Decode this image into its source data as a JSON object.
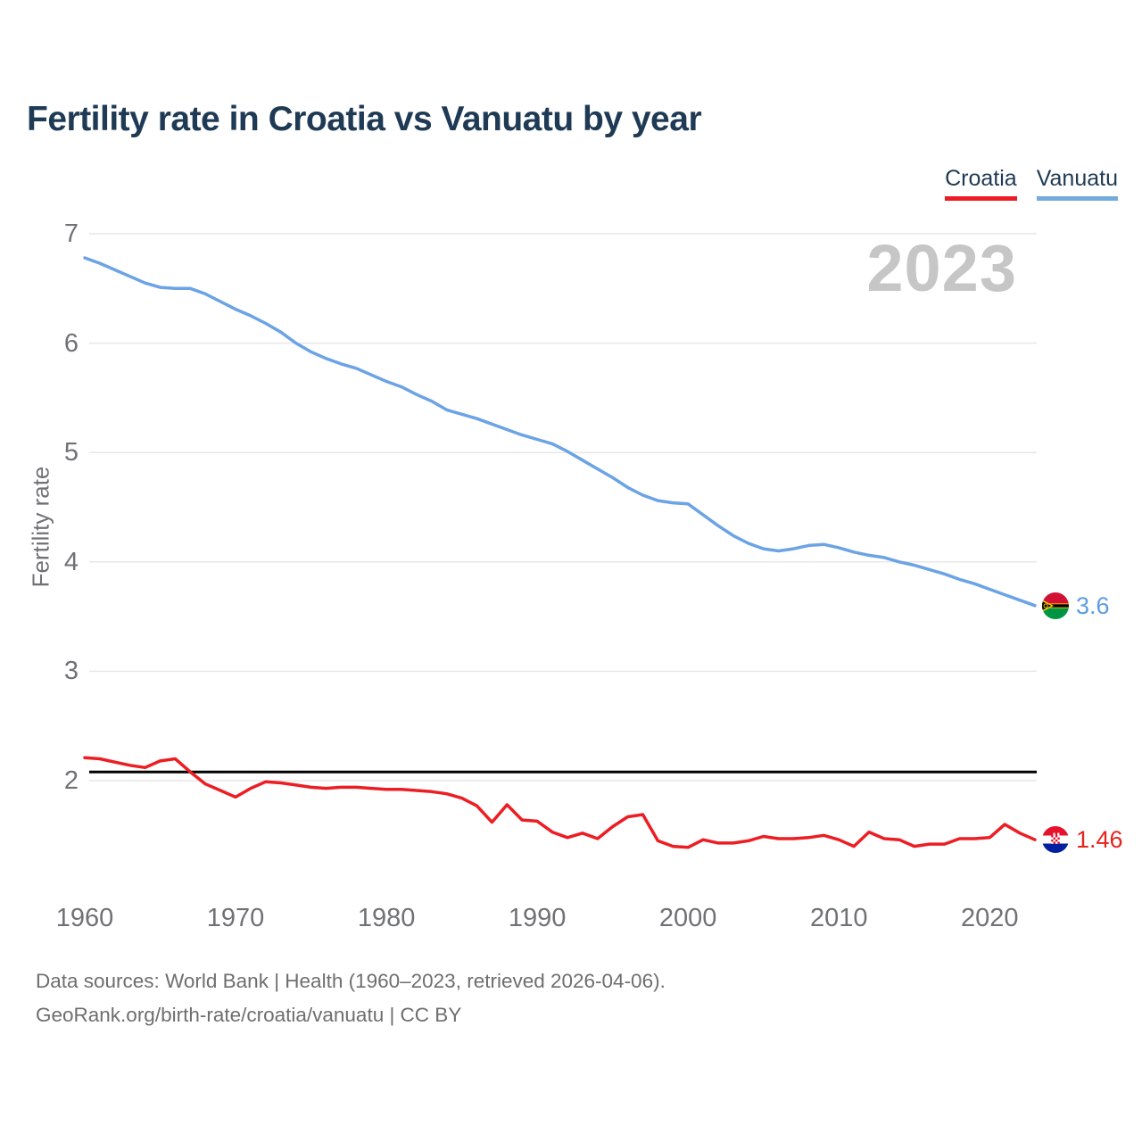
{
  "title": "Fertility rate in Croatia vs Vanuatu by year",
  "legend": {
    "items": [
      {
        "label": "Croatia",
        "color": "#ed1c24"
      },
      {
        "label": "Vanuatu",
        "color": "#74abde"
      }
    ]
  },
  "watermark": "2023",
  "source": {
    "line1": "Data sources: World Bank | Health (1960–2023, retrieved 2026-04-06).",
    "line2": "GeoRank.org/birth-rate/croatia/vanuatu | CC BY"
  },
  "chart_data": {
    "type": "line",
    "title": "Fertility rate in Croatia vs Vanuatu by year",
    "xlabel": "",
    "ylabel": "Fertility rate",
    "x_start_year": 1960,
    "x_end_year": 2023,
    "xticks": [
      1960,
      1970,
      1980,
      1990,
      2000,
      2010,
      2020
    ],
    "yticks": [
      2,
      3,
      4,
      5,
      6,
      7
    ],
    "ylim_ticks": [
      2,
      7
    ],
    "grid": "horizontal",
    "legend_position": "top-right",
    "reference_line": {
      "value": 2.08,
      "color": "#000000",
      "label": ""
    },
    "series": [
      {
        "name": "Vanuatu",
        "color": "#6ba3e5",
        "end_label": "3.6",
        "end_value": 3.6,
        "values": [
          6.78,
          6.73,
          6.67,
          6.61,
          6.55,
          6.51,
          6.5,
          6.5,
          6.45,
          6.38,
          6.31,
          6.25,
          6.18,
          6.1,
          6.0,
          5.92,
          5.86,
          5.81,
          5.77,
          5.71,
          5.65,
          5.6,
          5.53,
          5.47,
          5.39,
          5.35,
          5.31,
          5.26,
          5.21,
          5.16,
          5.12,
          5.08,
          5.01,
          4.93,
          4.85,
          4.77,
          4.68,
          4.61,
          4.56,
          4.54,
          4.53,
          4.43,
          4.33,
          4.24,
          4.17,
          4.12,
          4.1,
          4.12,
          4.15,
          4.16,
          4.13,
          4.09,
          4.06,
          4.04,
          4.0,
          3.97,
          3.93,
          3.89,
          3.84,
          3.8,
          3.75,
          3.7,
          3.65,
          3.6
        ]
      },
      {
        "name": "Croatia",
        "color": "#ec1e24",
        "end_label": "1.46",
        "end_value": 1.46,
        "values": [
          2.21,
          2.2,
          2.17,
          2.14,
          2.12,
          2.18,
          2.2,
          2.08,
          1.97,
          1.91,
          1.85,
          1.93,
          1.99,
          1.98,
          1.96,
          1.94,
          1.93,
          1.94,
          1.94,
          1.93,
          1.92,
          1.92,
          1.91,
          1.9,
          1.88,
          1.84,
          1.77,
          1.62,
          1.78,
          1.64,
          1.63,
          1.53,
          1.48,
          1.52,
          1.47,
          1.58,
          1.67,
          1.69,
          1.45,
          1.4,
          1.39,
          1.46,
          1.43,
          1.43,
          1.45,
          1.49,
          1.47,
          1.47,
          1.48,
          1.5,
          1.46,
          1.4,
          1.53,
          1.47,
          1.46,
          1.4,
          1.42,
          1.42,
          1.47,
          1.47,
          1.48,
          1.6,
          1.52,
          1.46
        ]
      }
    ]
  }
}
